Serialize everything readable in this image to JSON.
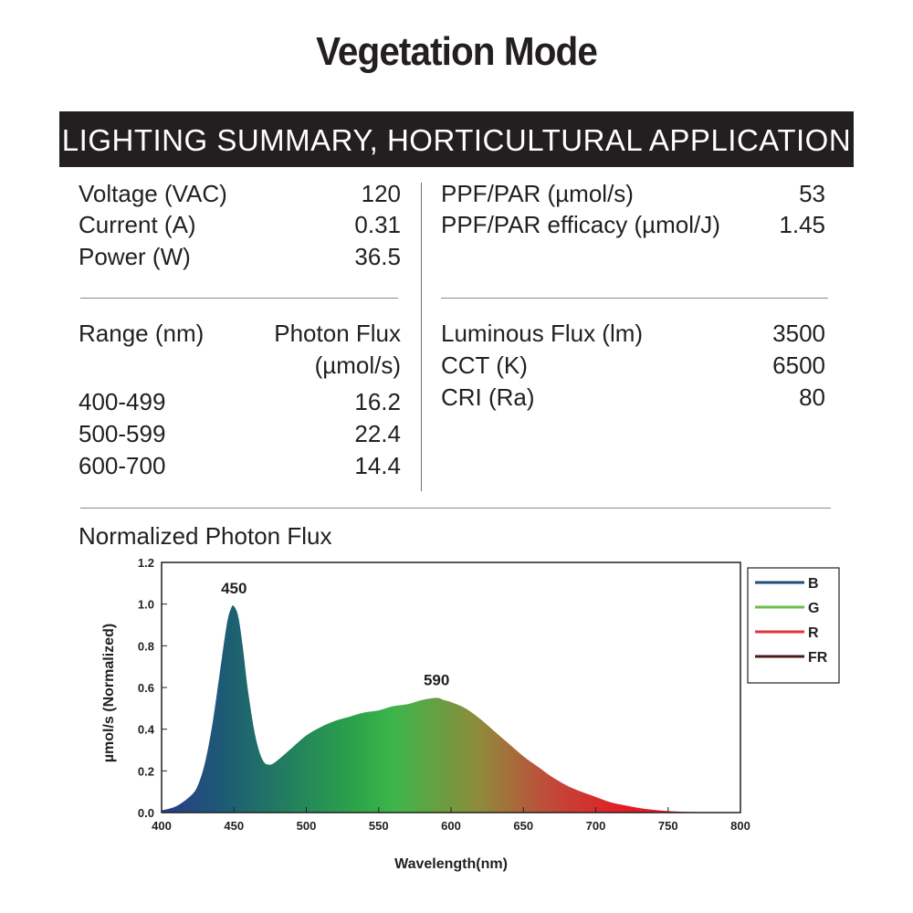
{
  "page_title": "Vegetation Mode",
  "banner": "LIGHTING SUMMARY, HORTICULTURAL APPLICATION",
  "electrical": [
    {
      "label": "Voltage (VAC)",
      "value": "120"
    },
    {
      "label": "Current (A)",
      "value": "0.31"
    },
    {
      "label": "Power (W)",
      "value": "36.5"
    }
  ],
  "ppf": [
    {
      "label": "PPF/PAR (µmol/s)",
      "value": "53"
    },
    {
      "label": "PPF/PAR efficacy (µmol/J)",
      "value": "1.45"
    }
  ],
  "range_table": {
    "header_label": "Range (nm)",
    "header_value_line1": "Photon Flux",
    "header_value_line2": "(µmol/s)",
    "rows": [
      {
        "label": "400-499",
        "value": "16.2"
      },
      {
        "label": "500-599",
        "value": "22.4"
      },
      {
        "label": "600-700",
        "value": "14.4"
      }
    ]
  },
  "photometric": [
    {
      "label": "Luminous Flux (lm)",
      "value": "3500"
    },
    {
      "label": "CCT (K)",
      "value": "6500"
    },
    {
      "label": "CRI (Ra)",
      "value": "80"
    }
  ],
  "chart_title": "Normalized Photon Flux",
  "chart_data": {
    "type": "area",
    "title": "Normalized Photon Flux",
    "xlabel": "Wavelength(nm)",
    "ylabel": "µmol/s (Normalized)",
    "xlim": [
      400,
      800
    ],
    "ylim": [
      0,
      1.2
    ],
    "x_ticks": [
      "400",
      "450",
      "500",
      "550",
      "600",
      "650",
      "700",
      "750",
      "800"
    ],
    "y_ticks": [
      "0.0",
      "0.2",
      "0.4",
      "0.6",
      "0.8",
      "1.0",
      "1.2"
    ],
    "x": [
      400,
      410,
      420,
      425,
      430,
      435,
      440,
      445,
      448,
      450,
      453,
      456,
      460,
      465,
      470,
      475,
      480,
      490,
      500,
      510,
      520,
      530,
      540,
      550,
      560,
      570,
      580,
      590,
      595,
      600,
      610,
      620,
      630,
      640,
      650,
      660,
      670,
      680,
      690,
      700,
      710,
      720,
      730,
      740,
      750,
      760,
      770,
      780,
      800
    ],
    "values": [
      0.01,
      0.03,
      0.08,
      0.13,
      0.24,
      0.42,
      0.66,
      0.9,
      0.98,
      0.99,
      0.94,
      0.8,
      0.57,
      0.36,
      0.25,
      0.23,
      0.25,
      0.31,
      0.37,
      0.41,
      0.44,
      0.46,
      0.48,
      0.49,
      0.51,
      0.52,
      0.54,
      0.55,
      0.54,
      0.53,
      0.5,
      0.45,
      0.39,
      0.33,
      0.27,
      0.22,
      0.17,
      0.13,
      0.1,
      0.075,
      0.05,
      0.035,
      0.022,
      0.013,
      0.007,
      0.004,
      0.002,
      0.001,
      0.0
    ],
    "annotations": [
      {
        "text": "450",
        "x": 450,
        "y": 0.99
      },
      {
        "text": "590",
        "x": 590,
        "y": 0.55
      }
    ],
    "legend": {
      "placement": "right",
      "entries": [
        {
          "name": "B",
          "color": "#1f4e79"
        },
        {
          "name": "G",
          "color": "#6cbe45"
        },
        {
          "name": "R",
          "color": "#e1353c"
        },
        {
          "name": "FR",
          "color": "#4a1a1a"
        }
      ]
    },
    "gradient_colors": [
      "#2b3a8a",
      "#1c5c74",
      "#2aa24a",
      "#3cb64a",
      "#8f8a3a",
      "#c04a3a",
      "#e21c24",
      "#e21c24"
    ]
  }
}
